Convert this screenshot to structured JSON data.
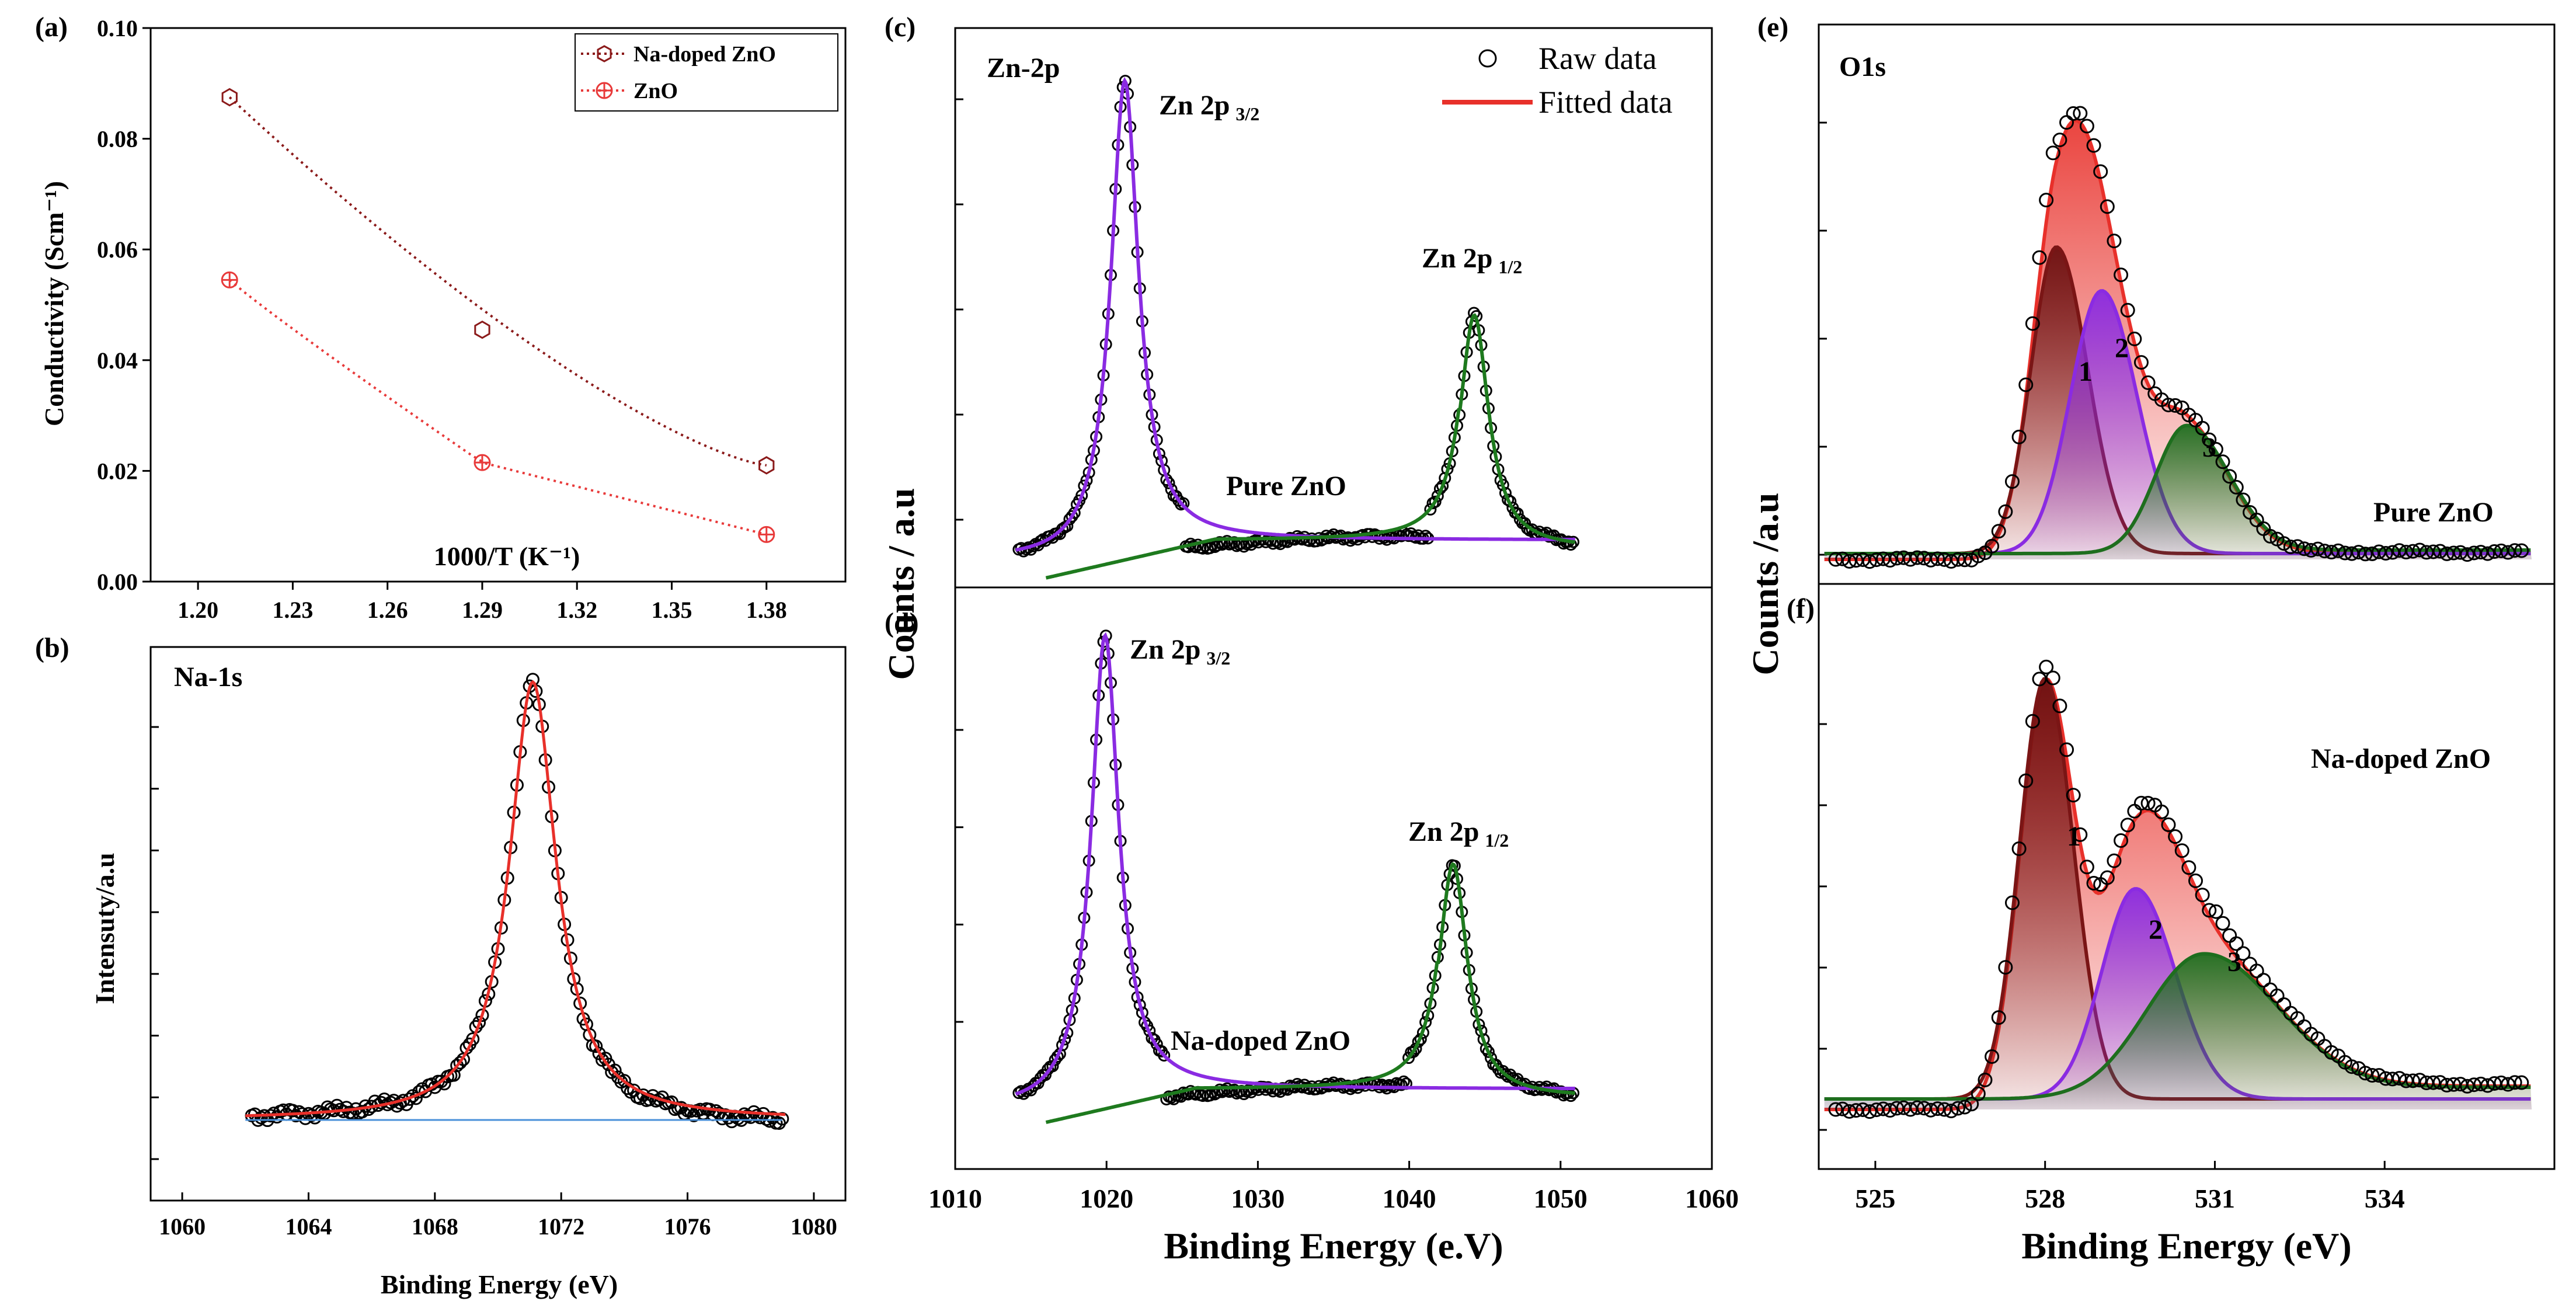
{
  "chart_data": [
    {
      "id": "a",
      "panel_label": "(a)",
      "type": "line",
      "xlabel": "1000/T (K⁻¹)",
      "ylabel": "Conductivity (Scm⁻¹)",
      "xlim": [
        1.185,
        1.405
      ],
      "ylim": [
        0.0,
        0.1
      ],
      "xticks": [
        "1.20",
        "1.23",
        "1.26",
        "1.29",
        "1.32",
        "1.35",
        "1.38"
      ],
      "yticks": [
        "0.00",
        "0.02",
        "0.04",
        "0.06",
        "0.08",
        "0.10"
      ],
      "legend_position": "top-right",
      "series": [
        {
          "name": "Na-doped ZnO",
          "color": "#8b1a1a",
          "marker": "hexagon",
          "x": [
            1.21,
            1.29,
            1.38
          ],
          "values": [
            0.0875,
            0.0455,
            0.021
          ]
        },
        {
          "name": "ZnO",
          "color": "#e83a3a",
          "marker": "circle-plus",
          "x": [
            1.21,
            1.29,
            1.38
          ],
          "values": [
            0.0545,
            0.0215,
            0.0085
          ]
        }
      ]
    },
    {
      "id": "b",
      "panel_label": "(b)",
      "type": "line",
      "title": "Na-1s",
      "xlabel": "Binding Energy (eV)",
      "ylabel": "Intensuty/a.u",
      "xlim": [
        1059,
        1081
      ],
      "xticks": [
        "1060",
        "1064",
        "1068",
        "1072",
        "1076",
        "1080"
      ],
      "peaks": [
        {
          "center": 1071.1,
          "fwhm": 1.8
        }
      ],
      "baseline_color": "#4a90d9",
      "fit_color": "#e8302a"
    },
    {
      "id": "c",
      "panel_label": "(c)",
      "type": "line",
      "title": "Zn-2p",
      "sample": "Pure ZnO",
      "legend": [
        "Raw data",
        "Fitted data"
      ],
      "legend_position": "top-right",
      "peaks": [
        {
          "name": "Zn 2p",
          "sub": "3/2",
          "center": 1021.2,
          "fwhm": 2.2,
          "color": "#8a2be2"
        },
        {
          "name": "Zn 2p",
          "sub": "1/2",
          "center": 1044.3,
          "fwhm": 2.3,
          "color": "#1e7a1e"
        }
      ]
    },
    {
      "id": "d",
      "panel_label": "(d)",
      "type": "line",
      "sample": "Na-doped ZnO",
      "xlabel": "Binding Energy (e.V)",
      "ylabel": "Counts / a.u",
      "xlim": [
        1010,
        1060
      ],
      "xticks": [
        "1010",
        "1020",
        "1030",
        "1040",
        "1050",
        "1060"
      ],
      "peaks": [
        {
          "name": "Zn 2p",
          "sub": "3/2",
          "center": 1019.9,
          "fwhm": 2.2,
          "color": "#8a2be2"
        },
        {
          "name": "Zn 2p",
          "sub": "1/2",
          "center": 1042.9,
          "fwhm": 2.3,
          "color": "#1e7a1e"
        }
      ]
    },
    {
      "id": "e",
      "panel_label": "(e)",
      "type": "area",
      "title": "O1s",
      "sample": "Pure ZnO",
      "components": [
        {
          "label": "1",
          "center": 528.2,
          "color": "#8b1a1a"
        },
        {
          "label": "2",
          "center": 529.0,
          "color": "#8a2be2"
        },
        {
          "label": "3",
          "center": 530.5,
          "color": "#1e7a1e"
        }
      ],
      "fit_color": "#e8302a"
    },
    {
      "id": "f",
      "panel_label": "(f)",
      "type": "area",
      "sample": "Na-doped ZnO",
      "xlabel": "Binding Energy (eV)",
      "ylabel": "Counts /a.u",
      "xlim": [
        524,
        537
      ],
      "xticks": [
        "525",
        "528",
        "531",
        "534"
      ],
      "components": [
        {
          "label": "1",
          "center": 528.0,
          "color": "#8b1a1a"
        },
        {
          "label": "2",
          "center": 529.6,
          "color": "#8a2be2"
        },
        {
          "label": "3",
          "center": 530.8,
          "color": "#1e7a1e"
        }
      ],
      "fit_color": "#e8302a"
    }
  ]
}
